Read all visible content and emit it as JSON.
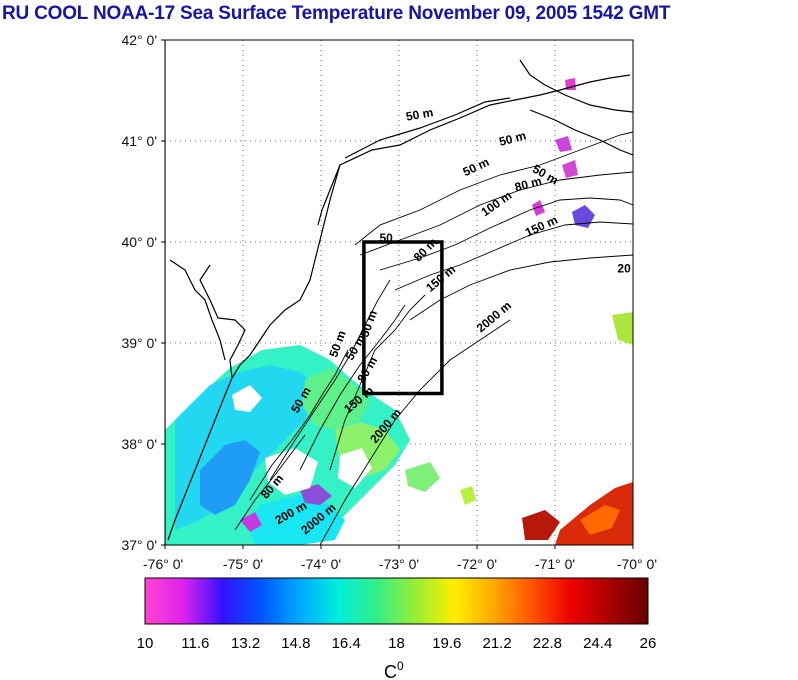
{
  "title": "RU COOL  NOAA-17 Sea Surface Temperature November 09, 2005 1542 GMT",
  "map": {
    "lon_range": [
      -76,
      -70
    ],
    "lat_range": [
      37,
      42
    ],
    "lat_ticks": [
      {
        "value": 42,
        "label": "42° 0'"
      },
      {
        "value": 41,
        "label": "41° 0'"
      },
      {
        "value": 40,
        "label": "40° 0'"
      },
      {
        "value": 39,
        "label": "39° 0'"
      },
      {
        "value": 38,
        "label": "38° 0'"
      },
      {
        "value": 37,
        "label": "37° 0'"
      }
    ],
    "lon_ticks": [
      {
        "value": -76,
        "label": "-76° 0'"
      },
      {
        "value": -75,
        "label": "-75° 0'"
      },
      {
        "value": -74,
        "label": "-74° 0'"
      },
      {
        "value": -73,
        "label": "-73° 0'"
      },
      {
        "value": -72,
        "label": "-72° 0'"
      },
      {
        "value": -71,
        "label": "-71° 0'"
      },
      {
        "value": -70,
        "label": "-70° 0'"
      }
    ],
    "grid": "dotted",
    "study_box": {
      "lon": [
        -73.45,
        -72.45
      ],
      "lat": [
        38.5,
        40.0
      ]
    },
    "contour_labels": [
      {
        "text": "50 m",
        "lon": -72.9,
        "lat": 41.2,
        "rot": -10
      },
      {
        "text": "50 m",
        "lon": -71.7,
        "lat": 40.95,
        "rot": -15
      },
      {
        "text": "50 m",
        "lon": -72.15,
        "lat": 40.65,
        "rot": -25
      },
      {
        "text": "50 m",
        "lon": -71.3,
        "lat": 40.7,
        "rot": 30
      },
      {
        "text": "80 m",
        "lon": -71.5,
        "lat": 40.5,
        "rot": -15
      },
      {
        "text": "100 m",
        "lon": -71.9,
        "lat": 40.25,
        "rot": -35
      },
      {
        "text": "150 m",
        "lon": -71.35,
        "lat": 40.05,
        "rot": -25
      },
      {
        "text": "20",
        "lon": -70.2,
        "lat": 39.7,
        "rot": 0
      },
      {
        "text": "50",
        "lon": -73.25,
        "lat": 40.0,
        "rot": 0
      },
      {
        "text": "80 m",
        "lon": -72.75,
        "lat": 39.8,
        "rot": -45
      },
      {
        "text": "150 m",
        "lon": -72.6,
        "lat": 39.5,
        "rot": -40
      },
      {
        "text": "2000 m",
        "lon": -71.95,
        "lat": 39.1,
        "rot": -40
      },
      {
        "text": "50 m",
        "lon": -73.4,
        "lat": 39.05,
        "rot": -70
      },
      {
        "text": "50 m",
        "lon": -73.8,
        "lat": 38.85,
        "rot": -70
      },
      {
        "text": "50 m",
        "lon": -73.6,
        "lat": 38.82,
        "rot": -60
      },
      {
        "text": "80 m",
        "lon": -73.45,
        "lat": 38.6,
        "rot": -60
      },
      {
        "text": "150 m",
        "lon": -73.65,
        "lat": 38.3,
        "rot": -40
      },
      {
        "text": "2000 m",
        "lon": -73.3,
        "lat": 38.0,
        "rot": -50
      },
      {
        "text": "50 m",
        "lon": -74.3,
        "lat": 38.3,
        "rot": -60
      },
      {
        "text": "80 m",
        "lon": -74.7,
        "lat": 37.45,
        "rot": -50
      },
      {
        "text": "200 m",
        "lon": -74.55,
        "lat": 37.2,
        "rot": -30
      },
      {
        "text": "2000 m",
        "lon": -74.2,
        "lat": 37.1,
        "rot": -40
      }
    ]
  },
  "colorbar": {
    "min": 10,
    "max": 26,
    "tick_labels": [
      "10",
      "11.6",
      "13.2",
      "14.8",
      "16.4",
      "18",
      "19.6",
      "21.2",
      "22.8",
      "24.4",
      "26"
    ],
    "unit_label": "C",
    "unit_superscript": "0",
    "colors": [
      "#ff44cc",
      "#dd22ee",
      "#3311ff",
      "#0055ff",
      "#00aaff",
      "#00eedd",
      "#33ee88",
      "#99ee33",
      "#ffee00",
      "#ffaa00",
      "#ff5500",
      "#ee0000",
      "#aa0000",
      "#660000"
    ]
  }
}
